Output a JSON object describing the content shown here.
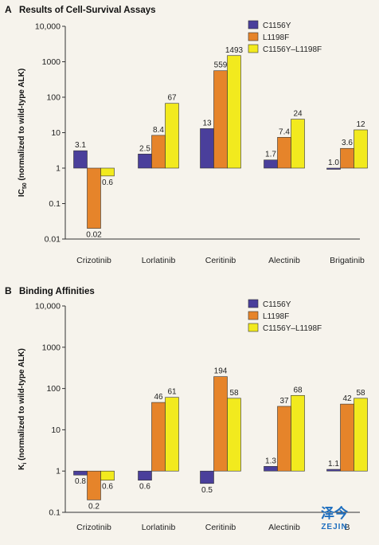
{
  "colors": {
    "C1156Y": "#4a3f9b",
    "L1198F": "#e6842a",
    "C1156Y–L1198F": "#f2ea1e",
    "stroke": "#333333"
  },
  "logo": {
    "chinese": "泽今",
    "latin": "ZEJIN"
  },
  "chart_data": [
    {
      "panel": "A",
      "title": "Results of Cell-Survival Assays",
      "type": "bar",
      "yscale": "log",
      "ylim": [
        0.01,
        10000
      ],
      "ylabel": "IC50 (normalized to wild-type ALK)",
      "ylabel_main": "IC",
      "ylabel_sub": "50",
      "ylabel_rest": " (normalized to wild-type ALK)",
      "ytick_labels": [
        "0.01",
        "0.1",
        "1",
        "10",
        "100",
        "1000",
        "10,000"
      ],
      "ytick_values": [
        0.01,
        0.1,
        1,
        10,
        100,
        1000,
        10000
      ],
      "categories": [
        "Crizotinib",
        "Lorlatinib",
        "Ceritinib",
        "Alectinib",
        "Brigatinib"
      ],
      "legend_position": "top-right",
      "series": [
        {
          "name": "C1156Y",
          "values": [
            3.1,
            2.5,
            13,
            1.7,
            1.0
          ],
          "labels": [
            "3.1",
            "2.5",
            "13",
            "1.7",
            "1.0"
          ]
        },
        {
          "name": "L1198F",
          "values": [
            0.02,
            8.4,
            559,
            7.4,
            3.6
          ],
          "labels": [
            "0.02",
            "8.4",
            "559",
            "7.4",
            "3.6"
          ]
        },
        {
          "name": "C1156Y–L1198F",
          "values": [
            0.6,
            67,
            1493,
            24,
            12
          ],
          "labels": [
            "0.6",
            "67",
            "1493",
            "24",
            "12"
          ]
        }
      ]
    },
    {
      "panel": "B",
      "title": "Binding Affinities",
      "type": "bar",
      "yscale": "log",
      "ylim": [
        0.1,
        10000
      ],
      "ylabel": "Ki (normalized to wild-type ALK)",
      "ylabel_main": "K",
      "ylabel_sub": "i",
      "ylabel_rest": " (normalized to wild-type ALK)",
      "ytick_labels": [
        "0.1",
        "1",
        "10",
        "100",
        "1000",
        "10,000"
      ],
      "ytick_values": [
        0.1,
        1,
        10,
        100,
        1000,
        10000
      ],
      "categories": [
        "Crizotinib",
        "Lorlatinib",
        "Ceritinib",
        "Alectinib",
        "B"
      ],
      "legend_position": "top-right",
      "series": [
        {
          "name": "C1156Y",
          "values": [
            0.8,
            0.6,
            0.5,
            1.3,
            1.1
          ],
          "labels": [
            "0.8",
            "0.6",
            "0.5",
            "1.3",
            "1.1"
          ]
        },
        {
          "name": "L1198F",
          "values": [
            0.2,
            46,
            194,
            37,
            42
          ],
          "labels": [
            "0.2",
            "46",
            "194",
            "37",
            "42"
          ]
        },
        {
          "name": "C1156Y–L1198F",
          "values": [
            0.6,
            61,
            58,
            68,
            58
          ],
          "labels": [
            "0.6",
            "61",
            "58",
            "68",
            "58"
          ]
        }
      ]
    }
  ]
}
